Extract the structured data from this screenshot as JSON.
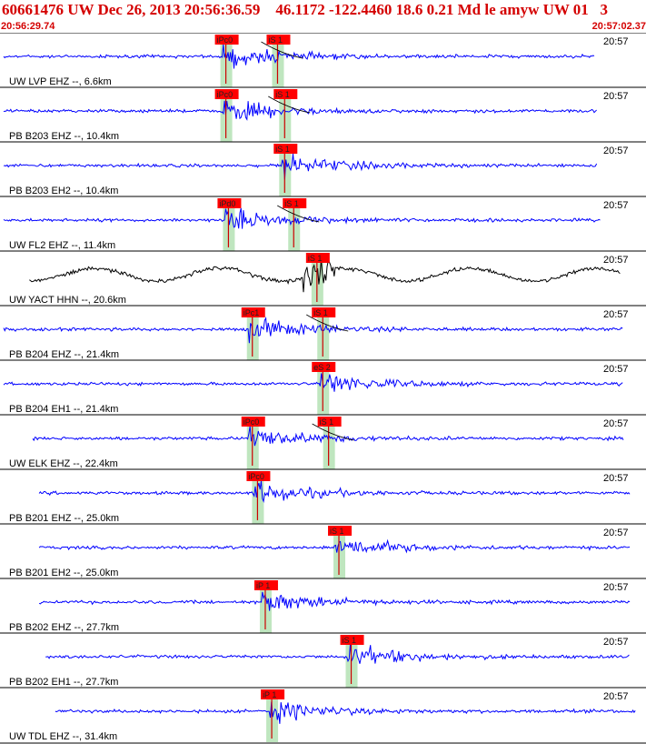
{
  "header": {
    "title": "60661476 UW Dec 26, 2013 20:56:36.59    46.1172 -122.4460 18.6 0.21 Md le amyw UW 01   3",
    "start_time": "20:56:29.74",
    "end_time": "20:57:02.37"
  },
  "colors": {
    "trace": "#0000ff",
    "trace_alt": "#000000",
    "pick_box": "#ff0000",
    "window": "#bfe6bf",
    "text_red": "#d40000"
  },
  "traces": [
    {
      "label": "UW LVP EHZ --, 6.6km",
      "time": "20:57",
      "color": "blue",
      "picks": [
        {
          "text": "iPc0",
          "t": 0.344
        },
        {
          "text": "iS 1",
          "t": 0.424
        }
      ]
    },
    {
      "label": "PB B203 EHZ --, 10.4km",
      "time": "20:57",
      "color": "blue",
      "picks": [
        {
          "text": "iPc0",
          "t": 0.344
        },
        {
          "text": "iS 1",
          "t": 0.435
        }
      ]
    },
    {
      "label": "PB B203 EH2 --, 10.4km",
      "time": "20:57",
      "color": "blue",
      "picks": [
        {
          "text": "iS 1",
          "t": 0.435
        }
      ]
    },
    {
      "label": "UW FL2 EHZ --, 11.4km",
      "time": "20:57",
      "color": "blue",
      "picks": [
        {
          "text": "iPd0",
          "t": 0.348
        },
        {
          "text": "iS 1",
          "t": 0.449
        }
      ]
    },
    {
      "label": "UW YACT HHN --, 20.6km",
      "time": "20:57",
      "color": "black",
      "picks": [
        {
          "text": "iS 1",
          "t": 0.485
        }
      ]
    },
    {
      "label": "PB B204 EHZ --, 21.4km",
      "time": "20:57",
      "color": "blue",
      "picks": [
        {
          "text": "iPc1",
          "t": 0.385
        },
        {
          "text": "iS 1",
          "t": 0.494
        }
      ]
    },
    {
      "label": "PB B204 EH1 --, 21.4km",
      "time": "20:57",
      "color": "blue",
      "picks": [
        {
          "text": "eS 2",
          "t": 0.494
        }
      ]
    },
    {
      "label": "UW ELK EHZ --, 22.4km",
      "time": "20:57",
      "color": "blue",
      "picks": [
        {
          "text": "iPc0",
          "t": 0.385
        },
        {
          "text": "iS 1",
          "t": 0.503
        }
      ]
    },
    {
      "label": "PB B201 EHZ --, 25.0km",
      "time": "20:57",
      "color": "blue",
      "picks": [
        {
          "text": "iPc0",
          "t": 0.393
        }
      ]
    },
    {
      "label": "PB B201 EH2 --, 25.0km",
      "time": "20:57",
      "color": "blue",
      "picks": [
        {
          "text": "iS 1",
          "t": 0.519
        }
      ]
    },
    {
      "label": "PB B202 EHZ --, 27.7km",
      "time": "20:57",
      "color": "blue",
      "picks": [
        {
          "text": "iP 1",
          "t": 0.405
        }
      ]
    },
    {
      "label": "PB B202 EH1 --, 27.7km",
      "time": "20:57",
      "color": "blue",
      "picks": [
        {
          "text": "iS 1",
          "t": 0.538
        }
      ]
    },
    {
      "label": "UW TDL EHZ --, 31.4km",
      "time": "20:57",
      "color": "blue",
      "picks": [
        {
          "text": "iP 1",
          "t": 0.415
        }
      ]
    }
  ]
}
